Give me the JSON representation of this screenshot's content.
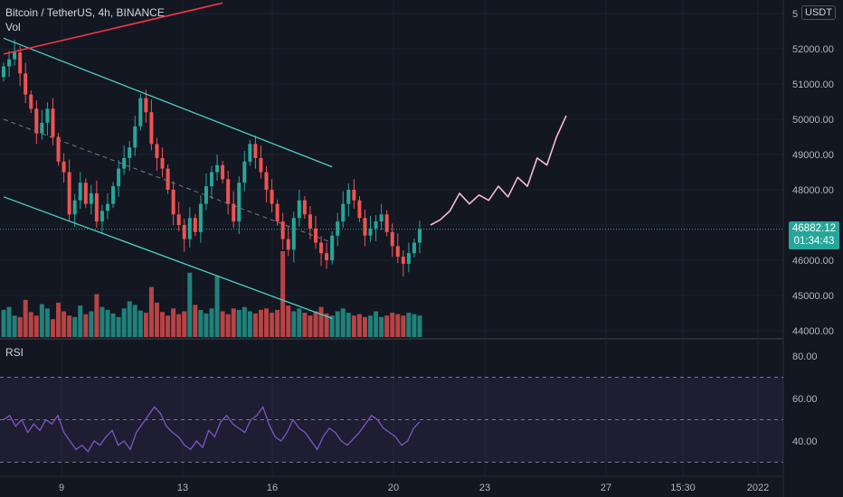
{
  "header": {
    "symbol_label": "Bitcoin / TetherUS, 4h, BINANCE",
    "volume_label": "Vol",
    "currency": "USDT"
  },
  "current_price": {
    "value": "46882.12",
    "countdown": "01:34:43"
  },
  "rsi": {
    "label": "RSI"
  },
  "colors": {
    "background": "#131722",
    "up": "#26a69a",
    "down": "#ef5350",
    "channel": "#4dd0c4",
    "trendline": "#f23645",
    "rsi_line": "#7e57c2",
    "projection": "#f8bbd0"
  },
  "chart_data": [
    {
      "type": "candlestick",
      "xlabel": "",
      "ylabel": "",
      "price_axis_ticks": [
        "5",
        "52000.00",
        "51000.00",
        "50000.00",
        "49000.00",
        "48000.00",
        "47000.00",
        "46000.00",
        "45000.00",
        "44000.00"
      ],
      "ylim": [
        44000,
        53000
      ],
      "time_axis_ticks": [
        "9",
        "13",
        "16",
        "20",
        "23",
        "27",
        "15:30",
        "2022"
      ],
      "candle_closes": [
        51500,
        51700,
        51900,
        51300,
        50700,
        50300,
        49600,
        49900,
        50300,
        49500,
        48800,
        48500,
        47300,
        47700,
        48200,
        47600,
        47900,
        47100,
        47400,
        47600,
        48100,
        48600,
        48900,
        49200,
        49800,
        50600,
        50200,
        49300,
        48900,
        48600,
        48000,
        47300,
        47000,
        46600,
        47200,
        46800,
        47600,
        48100,
        48500,
        48700,
        48300,
        47600,
        47100,
        48200,
        48800,
        49300,
        48900,
        48500,
        48000,
        47600,
        47100,
        46600,
        46300,
        47200,
        47700,
        47300,
        46900,
        46500,
        46200,
        46000,
        46700,
        47100,
        47600,
        48000,
        47700,
        47200,
        46700,
        46900,
        47100,
        47300,
        46800,
        46400,
        46100,
        45900,
        46200,
        46500,
        46882
      ],
      "volume_bars": [
        38,
        42,
        30,
        28,
        52,
        35,
        30,
        46,
        40,
        25,
        48,
        36,
        30,
        28,
        44,
        32,
        36,
        60,
        42,
        38,
        33,
        28,
        40,
        50,
        45,
        37,
        34,
        70,
        48,
        35,
        30,
        40,
        32,
        36,
        90,
        45,
        38,
        33,
        40,
        85,
        36,
        32,
        40,
        38,
        42,
        36,
        33,
        38,
        40,
        34,
        38,
        120,
        44,
        36,
        40,
        34,
        30,
        36,
        42,
        33,
        30,
        36,
        40,
        34,
        30,
        32,
        28,
        30,
        36,
        28,
        30,
        34,
        32,
        30,
        34,
        32,
        30
      ],
      "channel": {
        "upper": [
          [
            0,
            52300
          ],
          [
            60,
            48650
          ]
        ],
        "lower": [
          [
            0,
            47800
          ],
          [
            60,
            44350
          ]
        ],
        "midline": [
          [
            0,
            50000
          ],
          [
            60,
            46500
          ]
        ]
      },
      "trendline": [
        [
          0,
          51850
        ],
        [
          40,
          53300
        ]
      ],
      "projection": [
        47000,
        47150,
        47400,
        47900,
        47600,
        47850,
        47700,
        48100,
        47800,
        48350,
        48100,
        48900,
        48700,
        49500,
        50100
      ]
    },
    {
      "type": "line",
      "name": "RSI",
      "ylim": [
        20,
        90
      ],
      "ticks": [
        "80.00",
        "60.00",
        "40.00"
      ],
      "bands": [
        70,
        50,
        30
      ],
      "values": [
        50,
        52,
        47,
        50,
        44,
        48,
        45,
        50,
        48,
        52,
        44,
        40,
        36,
        38,
        35,
        40,
        38,
        42,
        45,
        38,
        40,
        36,
        44,
        48,
        52,
        56,
        53,
        47,
        44,
        42,
        38,
        36,
        40,
        37,
        45,
        42,
        49,
        52,
        48,
        46,
        44,
        50,
        52,
        56,
        48,
        42,
        40,
        44,
        50,
        46,
        44,
        40,
        36,
        42,
        46,
        44,
        40,
        38,
        41,
        44,
        48,
        52,
        50,
        46,
        44,
        42,
        38,
        40,
        46,
        49
      ]
    }
  ]
}
